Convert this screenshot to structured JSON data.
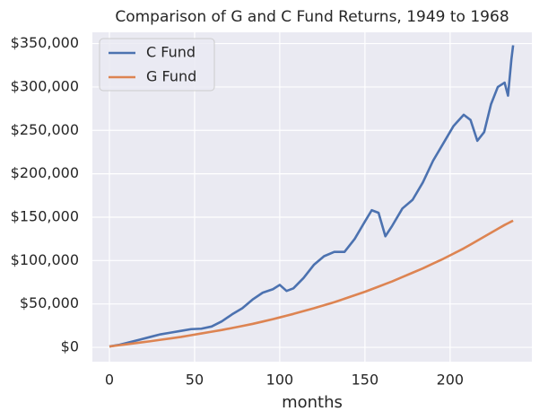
{
  "chart_data": {
    "type": "line",
    "title": "Comparison of G and C Fund Returns, 1949 to 1968",
    "x_label": "months",
    "x": [
      0,
      6,
      12,
      18,
      24,
      30,
      36,
      42,
      48,
      54,
      60,
      66,
      72,
      78,
      84,
      90,
      96,
      100,
      104,
      108,
      114,
      120,
      126,
      132,
      138,
      144,
      150,
      154,
      158,
      162,
      166,
      172,
      178,
      184,
      190,
      196,
      202,
      208,
      212,
      216,
      220,
      224,
      228,
      232,
      234,
      236,
      237
    ],
    "series": [
      {
        "name": "C Fund",
        "color": "#4c72b0",
        "values": [
          1000,
          3000,
          6000,
          9000,
          12000,
          15000,
          17000,
          19000,
          21000,
          21500,
          24000,
          30000,
          38000,
          45000,
          55000,
          63000,
          67000,
          72000,
          65000,
          68000,
          80000,
          95000,
          105000,
          110000,
          110000,
          125000,
          145000,
          158000,
          155000,
          128000,
          140000,
          160000,
          170000,
          190000,
          215000,
          235000,
          255000,
          268000,
          262000,
          238000,
          248000,
          280000,
          300000,
          305000,
          290000,
          332000,
          348000
        ]
      },
      {
        "name": "G Fund",
        "color": "#dd8452",
        "values": [
          1000,
          2500,
          4000,
          5500,
          7000,
          8700,
          10300,
          12000,
          14000,
          16000,
          18000,
          20000,
          22300,
          24600,
          27000,
          29700,
          32500,
          34500,
          36500,
          38500,
          41800,
          45000,
          48500,
          52000,
          56000,
          60000,
          64000,
          67000,
          70000,
          73000,
          76000,
          81000,
          86000,
          91000,
          96500,
          102000,
          108000,
          114000,
          118500,
          123000,
          127500,
          132000,
          136500,
          141000,
          143000,
          145000,
          146000
        ]
      }
    ],
    "xlim": [
      -10,
      248
    ],
    "xticks": [
      0,
      50,
      100,
      150,
      200
    ],
    "ylim": [
      -16500,
      363000
    ],
    "yticks": [
      {
        "value": 0,
        "label": "$0"
      },
      {
        "value": 50000,
        "label": "$50,000"
      },
      {
        "value": 100000,
        "label": "$100,000"
      },
      {
        "value": 150000,
        "label": "$150,000"
      },
      {
        "value": 200000,
        "label": "$200,000"
      },
      {
        "value": 250000,
        "label": "$250,000"
      },
      {
        "value": 300000,
        "label": "$300,000"
      },
      {
        "value": 350000,
        "label": "$350,000"
      }
    ],
    "grid": true,
    "legend": "upper-left"
  }
}
